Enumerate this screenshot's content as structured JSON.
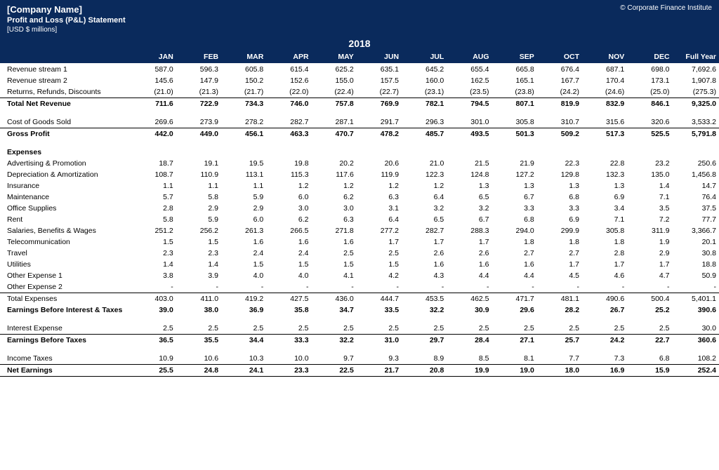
{
  "meta": {
    "company": "[Company Name]",
    "subtitle": "Profit and Loss (P&L) Statement",
    "units": "[USD $ millions]",
    "copyright": "© Corporate Finance Institute",
    "year": "2018",
    "header_bg": "#0a2a5c",
    "header_fg": "#ffffff"
  },
  "columns": [
    "JAN",
    "FEB",
    "MAR",
    "APR",
    "MAY",
    "JUN",
    "JUL",
    "AUG",
    "SEP",
    "OCT",
    "NOV",
    "DEC",
    "Full Year"
  ],
  "rows": [
    {
      "type": "data",
      "label": "Revenue stream 1",
      "values": [
        "587.0",
        "596.3",
        "605.8",
        "615.4",
        "625.2",
        "635.1",
        "645.2",
        "655.4",
        "665.8",
        "676.4",
        "687.1",
        "698.0",
        "7,692.6"
      ]
    },
    {
      "type": "data",
      "label": "Revenue stream 2",
      "values": [
        "145.6",
        "147.9",
        "150.2",
        "152.6",
        "155.0",
        "157.5",
        "160.0",
        "162.5",
        "165.1",
        "167.7",
        "170.4",
        "173.1",
        "1,907.8"
      ]
    },
    {
      "type": "data",
      "label": "Returns, Refunds, Discounts",
      "values": [
        "(21.0)",
        "(21.3)",
        "(21.7)",
        "(22.0)",
        "(22.4)",
        "(22.7)",
        "(23.1)",
        "(23.5)",
        "(23.8)",
        "(24.2)",
        "(24.6)",
        "(25.0)",
        "(275.3)"
      ]
    },
    {
      "type": "subtotal",
      "label": "Total Net Revenue",
      "values": [
        "711.6",
        "722.9",
        "734.3",
        "746.0",
        "757.8",
        "769.9",
        "782.1",
        "794.5",
        "807.1",
        "819.9",
        "832.9",
        "846.1",
        "9,325.0"
      ]
    },
    {
      "type": "spacer"
    },
    {
      "type": "data",
      "label": "Cost of Goods Sold",
      "values": [
        "269.6",
        "273.9",
        "278.2",
        "282.7",
        "287.1",
        "291.7",
        "296.3",
        "301.0",
        "305.8",
        "310.7",
        "315.6",
        "320.6",
        "3,533.2"
      ]
    },
    {
      "type": "subtotal",
      "label": "Gross Profit",
      "values": [
        "442.0",
        "449.0",
        "456.1",
        "463.3",
        "470.7",
        "478.2",
        "485.7",
        "493.5",
        "501.3",
        "509.2",
        "517.3",
        "525.5",
        "5,791.8"
      ]
    },
    {
      "type": "spacer"
    },
    {
      "type": "section",
      "label": "Expenses"
    },
    {
      "type": "data",
      "label": "Advertising & Promotion",
      "values": [
        "18.7",
        "19.1",
        "19.5",
        "19.8",
        "20.2",
        "20.6",
        "21.0",
        "21.5",
        "21.9",
        "22.3",
        "22.8",
        "23.2",
        "250.6"
      ]
    },
    {
      "type": "data",
      "label": "Depreciation & Amortization",
      "values": [
        "108.7",
        "110.9",
        "113.1",
        "115.3",
        "117.6",
        "119.9",
        "122.3",
        "124.8",
        "127.2",
        "129.8",
        "132.3",
        "135.0",
        "1,456.8"
      ]
    },
    {
      "type": "data",
      "label": "Insurance",
      "values": [
        "1.1",
        "1.1",
        "1.1",
        "1.2",
        "1.2",
        "1.2",
        "1.2",
        "1.3",
        "1.3",
        "1.3",
        "1.3",
        "1.4",
        "14.7"
      ]
    },
    {
      "type": "data",
      "label": "Maintenance",
      "values": [
        "5.7",
        "5.8",
        "5.9",
        "6.0",
        "6.2",
        "6.3",
        "6.4",
        "6.5",
        "6.7",
        "6.8",
        "6.9",
        "7.1",
        "76.4"
      ]
    },
    {
      "type": "data",
      "label": "Office Supplies",
      "values": [
        "2.8",
        "2.9",
        "2.9",
        "3.0",
        "3.0",
        "3.1",
        "3.2",
        "3.2",
        "3.3",
        "3.3",
        "3.4",
        "3.5",
        "37.5"
      ]
    },
    {
      "type": "data",
      "label": "Rent",
      "values": [
        "5.8",
        "5.9",
        "6.0",
        "6.2",
        "6.3",
        "6.4",
        "6.5",
        "6.7",
        "6.8",
        "6.9",
        "7.1",
        "7.2",
        "77.7"
      ]
    },
    {
      "type": "data",
      "label": "Salaries, Benefits & Wages",
      "values": [
        "251.2",
        "256.2",
        "261.3",
        "266.5",
        "271.8",
        "277.2",
        "282.7",
        "288.3",
        "294.0",
        "299.9",
        "305.8",
        "311.9",
        "3,366.7"
      ]
    },
    {
      "type": "data",
      "label": "Telecommunication",
      "values": [
        "1.5",
        "1.5",
        "1.6",
        "1.6",
        "1.6",
        "1.7",
        "1.7",
        "1.7",
        "1.8",
        "1.8",
        "1.8",
        "1.9",
        "20.1"
      ]
    },
    {
      "type": "data",
      "label": "Travel",
      "values": [
        "2.3",
        "2.3",
        "2.4",
        "2.4",
        "2.5",
        "2.5",
        "2.6",
        "2.6",
        "2.7",
        "2.7",
        "2.8",
        "2.9",
        "30.8"
      ]
    },
    {
      "type": "data",
      "label": "Utilities",
      "values": [
        "1.4",
        "1.4",
        "1.5",
        "1.5",
        "1.5",
        "1.5",
        "1.6",
        "1.6",
        "1.6",
        "1.7",
        "1.7",
        "1.7",
        "18.8"
      ]
    },
    {
      "type": "data",
      "label": "Other Expense 1",
      "values": [
        "3.8",
        "3.9",
        "4.0",
        "4.0",
        "4.1",
        "4.2",
        "4.3",
        "4.4",
        "4.4",
        "4.5",
        "4.6",
        "4.7",
        "50.9"
      ]
    },
    {
      "type": "data",
      "label": "Other Expense 2",
      "values": [
        "-",
        "-",
        "-",
        "-",
        "-",
        "-",
        "-",
        "-",
        "-",
        "-",
        "-",
        "-",
        "-"
      ]
    },
    {
      "type": "sumline",
      "label": "Total Expenses",
      "values": [
        "403.0",
        "411.0",
        "419.2",
        "427.5",
        "436.0",
        "444.7",
        "453.5",
        "462.5",
        "471.7",
        "481.1",
        "490.6",
        "500.4",
        "5,401.1"
      ]
    },
    {
      "type": "bold",
      "label": "Earnings Before Interest & Taxes",
      "values": [
        "39.0",
        "38.0",
        "36.9",
        "35.8",
        "34.7",
        "33.5",
        "32.2",
        "30.9",
        "29.6",
        "28.2",
        "26.7",
        "25.2",
        "390.6"
      ]
    },
    {
      "type": "spacer"
    },
    {
      "type": "data",
      "label": "Interest Expense",
      "values": [
        "2.5",
        "2.5",
        "2.5",
        "2.5",
        "2.5",
        "2.5",
        "2.5",
        "2.5",
        "2.5",
        "2.5",
        "2.5",
        "2.5",
        "30.0"
      ]
    },
    {
      "type": "subtotal",
      "label": "Earnings Before Taxes",
      "values": [
        "36.5",
        "35.5",
        "34.4",
        "33.3",
        "32.2",
        "31.0",
        "29.7",
        "28.4",
        "27.1",
        "25.7",
        "24.2",
        "22.7",
        "360.6"
      ]
    },
    {
      "type": "spacer"
    },
    {
      "type": "data",
      "label": "Income Taxes",
      "values": [
        "10.9",
        "10.6",
        "10.3",
        "10.0",
        "9.7",
        "9.3",
        "8.9",
        "8.5",
        "8.1",
        "7.7",
        "7.3",
        "6.8",
        "108.2"
      ]
    },
    {
      "type": "grandtotal",
      "label": "Net Earnings",
      "values": [
        "25.5",
        "24.8",
        "24.1",
        "23.3",
        "22.5",
        "21.7",
        "20.8",
        "19.9",
        "19.0",
        "18.0",
        "16.9",
        "15.9",
        "252.4"
      ]
    }
  ]
}
